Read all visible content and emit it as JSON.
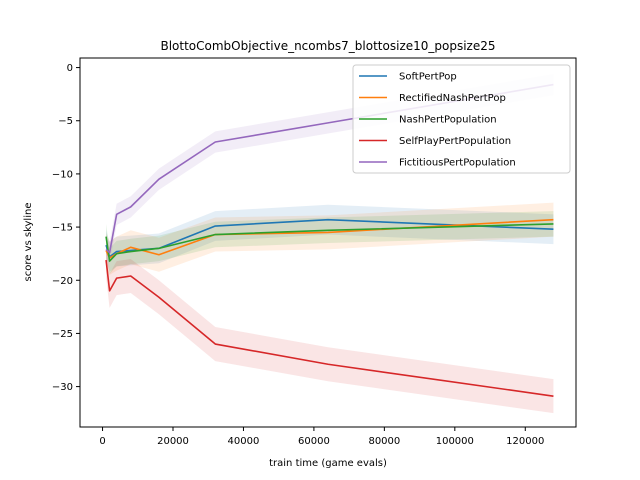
{
  "chart_data": {
    "type": "line",
    "title": "BlottoCombObjective_ncombs7_blottosize10_popsize25",
    "xlabel": "train time (game evals)",
    "ylabel": "score vs skyline",
    "xlim": [
      -6400,
      134400
    ],
    "ylim": [
      -33.8,
      0.9
    ],
    "x_ticks": [
      0,
      20000,
      40000,
      60000,
      80000,
      100000,
      120000
    ],
    "y_ticks": [
      0,
      -5,
      -10,
      -15,
      -20,
      -25,
      -30
    ],
    "x_tick_labels": [
      "0",
      "20000",
      "40000",
      "60000",
      "80000",
      "100000",
      "120000"
    ],
    "y_tick_labels": [
      "0",
      "−5",
      "−10",
      "−15",
      "−20",
      "−25",
      "−30"
    ],
    "grid": false,
    "legend_position": "top-right",
    "x": [
      1000,
      2000,
      4000,
      8000,
      16000,
      32000,
      64000,
      128000
    ],
    "series": [
      {
        "name": "SoftPertPop",
        "color": "#1f77b4",
        "band": 1.4,
        "values": [
          -16.7,
          -17.8,
          -17.3,
          -17.2,
          -17.0,
          -14.9,
          -14.3,
          -15.2
        ]
      },
      {
        "name": "RectifiedNashPertPop",
        "color": "#ff7f0e",
        "band": 1.6,
        "values": [
          -17.2,
          -17.9,
          -17.5,
          -16.9,
          -17.6,
          -15.7,
          -15.5,
          -14.3
        ]
      },
      {
        "name": "NashPertPopulation",
        "color": "#2ca02c",
        "band": 1.2,
        "values": [
          -15.9,
          -18.2,
          -17.5,
          -17.3,
          -17.0,
          -15.7,
          -15.3,
          -14.7
        ]
      },
      {
        "name": "SelfPlayPertPopulation",
        "color": "#d62728",
        "band": 1.6,
        "values": [
          -18.1,
          -21.0,
          -19.8,
          -19.6,
          -21.6,
          -26.0,
          -27.9,
          -30.9
        ]
      },
      {
        "name": "FictitiousPertPopulation",
        "color": "#9467bd",
        "band": 1.0,
        "values": [
          -17.1,
          -17.4,
          -13.8,
          -13.1,
          -10.5,
          -7.0,
          -5.2,
          -1.6
        ]
      }
    ]
  }
}
